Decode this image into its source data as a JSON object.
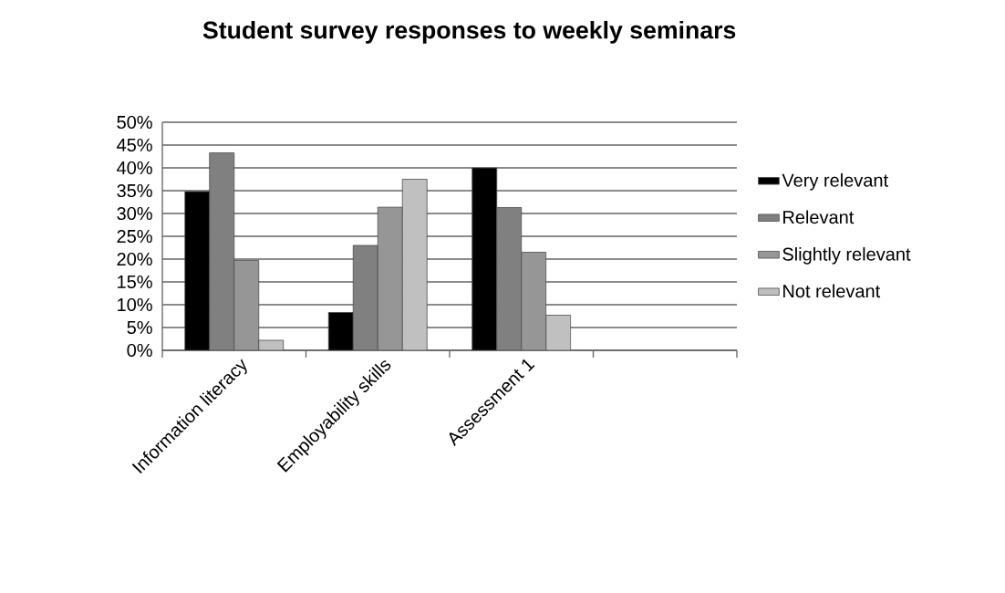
{
  "chart_data": {
    "type": "bar",
    "title": "Student survey responses to weekly seminars",
    "categories": [
      "Information literacy",
      "Employability skills",
      "Assessment 1",
      null
    ],
    "series": [
      {
        "name": "Very relevant",
        "color": "#000000",
        "values": [
          34.8,
          8.3,
          40,
          null
        ]
      },
      {
        "name": "Relevant",
        "color": "#808080",
        "values": [
          43.3,
          23.0,
          31.3,
          null
        ]
      },
      {
        "name": "Slightly relevant",
        "color": "#969696",
        "values": [
          19.7,
          31.4,
          21.5,
          null
        ]
      },
      {
        "name": "Not relevant",
        "color": "#c0c0c0",
        "values": [
          2.2,
          37.5,
          7.7,
          null
        ]
      }
    ],
    "ylim": [
      0,
      50
    ],
    "yticks": [
      {
        "value": 0,
        "label": "0%"
      },
      {
        "value": 5,
        "label": "5%"
      },
      {
        "value": 10,
        "label": "10%"
      },
      {
        "value": 15,
        "label": "15%"
      },
      {
        "value": 20,
        "label": "20%"
      },
      {
        "value": 25,
        "label": "25%"
      },
      {
        "value": 30,
        "label": "30%"
      },
      {
        "value": 35,
        "label": "35%"
      },
      {
        "value": 40,
        "label": "40%"
      },
      {
        "value": 45,
        "label": "45%"
      },
      {
        "value": 50,
        "label": "50%"
      }
    ],
    "grid": "y",
    "legend": "right"
  }
}
